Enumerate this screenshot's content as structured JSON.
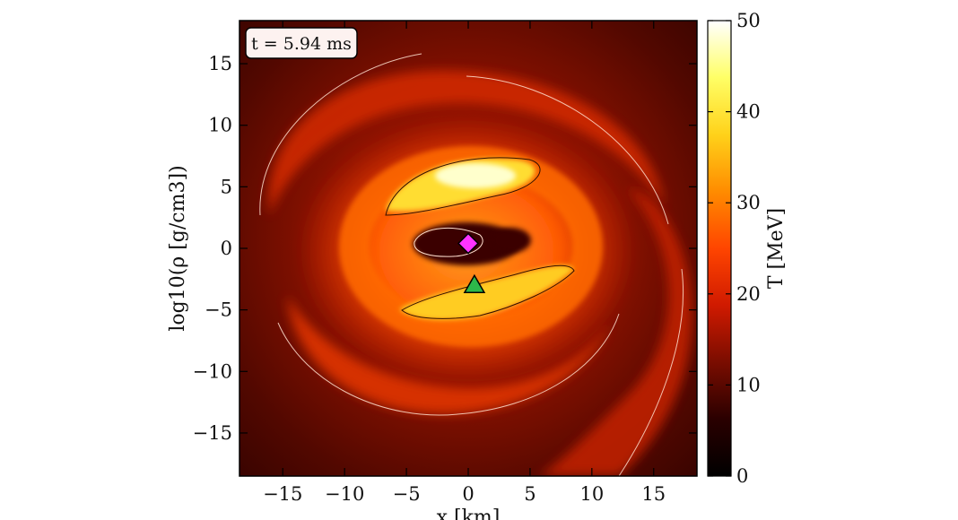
{
  "chart_data": {
    "type": "heatmap",
    "title": "",
    "annotation": "t = 5.94 ms",
    "xlabel": "x [km]",
    "ylabel": "log10(ρ [g/cm3])",
    "xlim": [
      -18.5,
      18.5
    ],
    "ylim": [
      -18.5,
      18.5
    ],
    "x_ticks": [
      -15,
      -10,
      -5,
      0,
      5,
      10,
      15
    ],
    "y_ticks": [
      -15,
      -10,
      -5,
      0,
      5,
      10,
      15
    ],
    "x_tick_labels": [
      "−15",
      "−10",
      "−5",
      "0",
      "5",
      "10",
      "15"
    ],
    "y_tick_labels": [
      "−15",
      "−10",
      "−5",
      "0",
      "5",
      "10",
      "15"
    ],
    "colorbar": {
      "label": "T [MeV]",
      "min": 0,
      "max": 50,
      "ticks": [
        0,
        10,
        20,
        30,
        40,
        50
      ],
      "tick_labels": [
        "0",
        "10",
        "20",
        "30",
        "40",
        "50"
      ],
      "colormap": "hot",
      "stops": [
        "#000000",
        "#2a0000",
        "#7a0d00",
        "#d01a00",
        "#ff4500",
        "#ff8c00",
        "#ffd21a",
        "#ffff66",
        "#ffffff"
      ]
    },
    "markers": [
      {
        "name": "diamond",
        "shape": "diamond",
        "x": 0.0,
        "y": 0.4,
        "color": "#ff33ff"
      },
      {
        "name": "triangle",
        "shape": "triangle",
        "x": 0.5,
        "y": -3.0,
        "color": "#2db84a"
      }
    ],
    "grid": false
  }
}
